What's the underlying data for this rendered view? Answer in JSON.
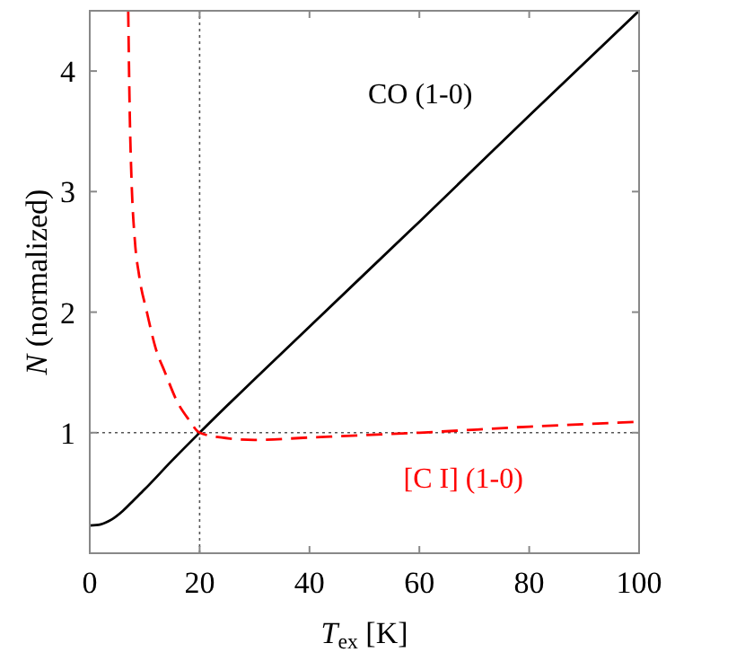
{
  "chart_data": {
    "type": "line",
    "xlabel": "T$_{ex}$ [K]",
    "ylabel": "N (normalized)",
    "xlim": [
      0,
      100
    ],
    "ylim": [
      0,
      4.5
    ],
    "xticks": [
      0,
      20,
      40,
      60,
      80,
      100
    ],
    "yticks": [
      1,
      2,
      3,
      4
    ],
    "grid": false,
    "series": [
      {
        "name": "CO (1-0)",
        "color": "#000000",
        "line_style": "solid",
        "x": [
          0,
          2,
          4,
          6,
          8,
          10,
          15,
          20,
          40,
          60,
          80,
          100
        ],
        "values": [
          0.23,
          0.24,
          0.28,
          0.35,
          0.44,
          0.53,
          0.77,
          1.0,
          1.88,
          2.75,
          3.63,
          4.5
        ]
      },
      {
        "name": "[C I] (1-0)",
        "color": "#ff0000",
        "line_style": "dashed",
        "x": [
          7.0,
          7.3,
          7.6,
          8.2,
          9,
          10.4,
          12,
          13.7,
          16,
          18,
          20,
          24,
          30,
          40,
          50,
          60,
          80,
          100
        ],
        "values": [
          4.5,
          3.6,
          3.1,
          2.6,
          2.3,
          2.0,
          1.7,
          1.5,
          1.25,
          1.11,
          1.0,
          0.96,
          0.94,
          0.96,
          0.98,
          1.0,
          1.05,
          1.09
        ]
      }
    ],
    "ref_lines": [
      {
        "axis": "x",
        "value": 20,
        "color": "#555555",
        "line_style": "dotted"
      },
      {
        "axis": "y",
        "value": 1,
        "color": "#555555",
        "line_style": "dotted"
      }
    ]
  }
}
